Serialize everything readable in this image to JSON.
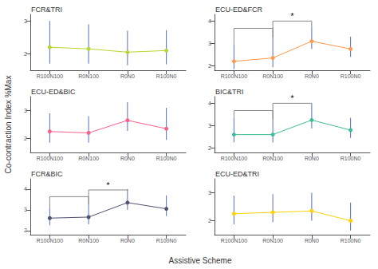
{
  "chart_data": [
    {
      "type": "line",
      "title": "FCR&TRI",
      "categories": [
        "R100N100",
        "R0N100",
        "R0N0",
        "R100N0"
      ],
      "values": [
        2.2,
        2.15,
        2.05,
        2.1
      ],
      "errors_up": [
        0.8,
        0.75,
        0.65,
        0.62
      ],
      "errors_down": [
        0.5,
        0.45,
        0.4,
        0.42
      ],
      "ylim": [
        1.5,
        3.2
      ],
      "yticks": [
        2,
        3
      ],
      "grid": false
    },
    {
      "type": "line",
      "title": "ECU-ED&FCR",
      "categories": [
        "R100N100",
        "R0N100",
        "R0N0",
        "R100N0"
      ],
      "values": [
        2.2,
        2.35,
        3.1,
        2.75
      ],
      "errors_up": [
        0.75,
        0.9,
        0.65,
        0.55
      ],
      "errors_down": [
        0.35,
        0.42,
        0.35,
        0.35
      ],
      "brackets": [
        {
          "from": "R100N100",
          "to": "R0N100",
          "y": 3.675
        },
        {
          "from": "R0N100",
          "to": "R0N0",
          "y": 4.0,
          "label": "*"
        }
      ],
      "ylim": [
        1.8,
        4.3
      ],
      "yticks": [
        2,
        3,
        4
      ],
      "grid": false
    },
    {
      "type": "line",
      "title": "ECU-ED&BIC",
      "categories": [
        "R100N100",
        "R0N100",
        "R0N0",
        "R100N0"
      ],
      "values": [
        2.25,
        2.2,
        2.65,
        2.35
      ],
      "errors_up": [
        0.65,
        0.6,
        0.65,
        0.75
      ],
      "errors_down": [
        0.4,
        0.35,
        0.38,
        0.4
      ],
      "ylim": [
        1.5,
        3.5
      ],
      "yticks": [
        2,
        3
      ],
      "grid": false
    },
    {
      "type": "line",
      "title": "BIC&TRI",
      "categories": [
        "R100N100",
        "R0N100",
        "R0N0",
        "R100N0"
      ],
      "values": [
        2.6,
        2.6,
        3.25,
        2.8
      ],
      "errors_up": [
        0.75,
        0.7,
        0.75,
        0.55
      ],
      "errors_down": [
        0.35,
        0.35,
        0.38,
        0.35
      ],
      "brackets": [
        {
          "from": "R100N100",
          "to": "R0N100",
          "y": 3.675
        },
        {
          "from": "R0N100",
          "to": "R0N0",
          "y": 4.0,
          "label": "*"
        }
      ],
      "ylim": [
        1.8,
        4.3
      ],
      "yticks": [
        2,
        3,
        4
      ],
      "grid": false
    },
    {
      "type": "line",
      "title": "FCR&BIC",
      "categories": [
        "R100N100",
        "R0N100",
        "R0N0",
        "R100N0"
      ],
      "values": [
        2.6,
        2.65,
        3.35,
        3.05
      ],
      "errors_up": [
        0.5,
        0.6,
        0.65,
        0.65
      ],
      "errors_down": [
        0.35,
        0.35,
        0.35,
        0.35
      ],
      "brackets": [
        {
          "from": "R100N100",
          "to": "R0N100",
          "y": 3.636
        },
        {
          "from": "R0N100",
          "to": "R0N0",
          "y": 3.96,
          "label": "*"
        }
      ],
      "ylim": [
        1.8,
        4.5
      ],
      "yticks": [
        2,
        3,
        4
      ],
      "grid": false
    },
    {
      "type": "line",
      "title": "ECU-ED&TRI",
      "categories": [
        "R100N100",
        "R0N100",
        "R0N0",
        "R100N0"
      ],
      "values": [
        2.25,
        2.3,
        2.35,
        2.0
      ],
      "errors_up": [
        0.65,
        0.65,
        0.65,
        0.65
      ],
      "errors_down": [
        0.38,
        0.35,
        0.35,
        0.35
      ],
      "ylim": [
        1.5,
        3.5
      ],
      "yticks": [
        2,
        3
      ],
      "grid": false
    }
  ],
  "xlabel": "Assistive Scheme",
  "ylabel": "Co-contraction Index %Max"
}
